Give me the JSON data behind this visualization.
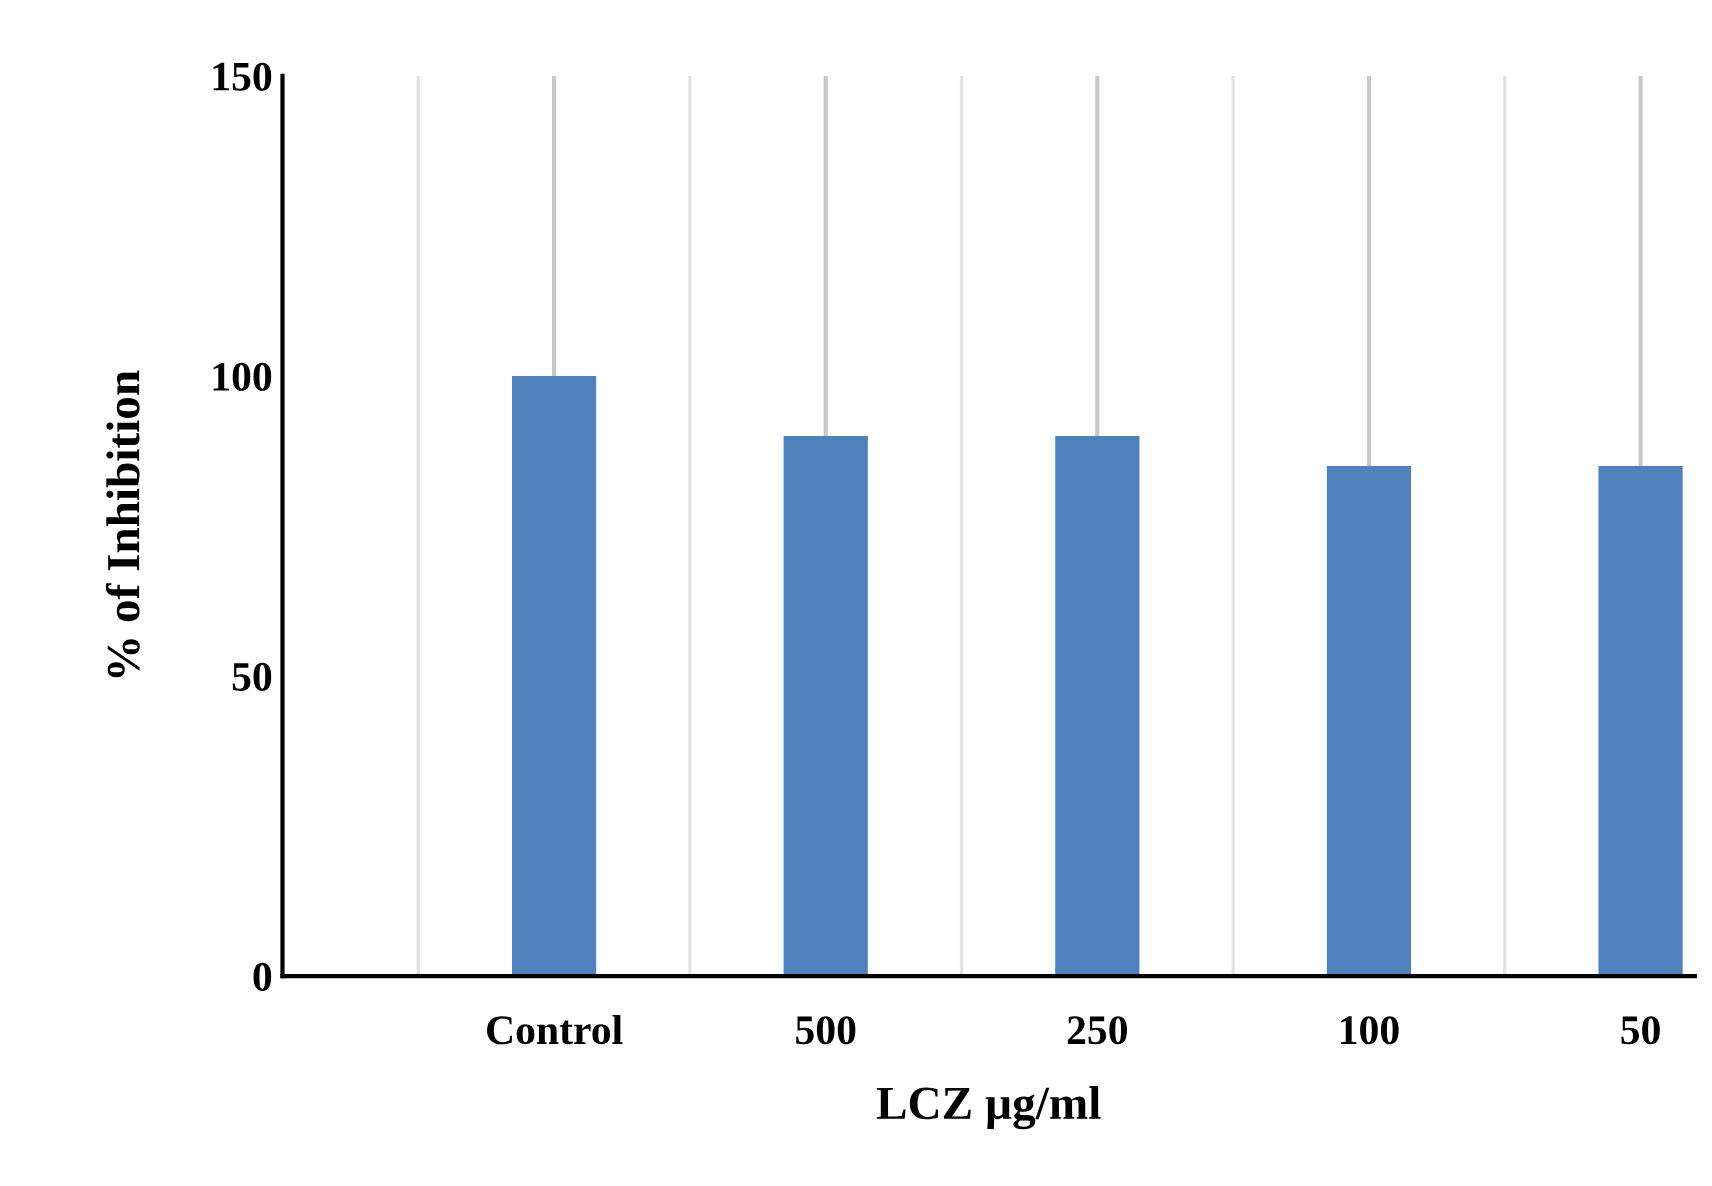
{
  "chart_data": {
    "type": "bar",
    "xlabel": "LCZ µg/ml",
    "ylabel": "% of Inhibition",
    "categories": [
      null,
      "Control",
      "500",
      "250",
      "100",
      "50"
    ],
    "values": [
      null,
      100,
      90,
      90,
      85,
      85
    ],
    "errors": [
      null,
      [
        100,
        150
      ],
      [
        90,
        150
      ],
      [
        90,
        150
      ],
      [
        85,
        150
      ],
      [
        85,
        150
      ]
    ],
    "color": "#4f81bd",
    "ylim": [
      0,
      150
    ],
    "yticks": [
      0,
      50,
      100,
      150
    ],
    "grid": "x"
  }
}
